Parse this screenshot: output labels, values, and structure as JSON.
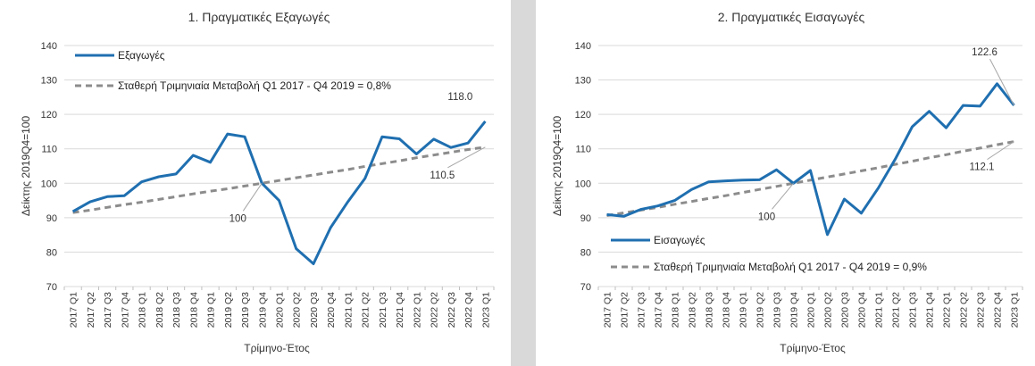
{
  "chart_data": [
    {
      "type": "line",
      "title": "1. Πραγματικές Εξαγωγές",
      "xlabel": "Τρίμηνο-Έτος",
      "ylabel": "Δείκτης 2019Q4=100",
      "ylim": [
        70,
        140
      ],
      "yticks": [
        70,
        80,
        90,
        100,
        110,
        120,
        130,
        140
      ],
      "grid": true,
      "legend_position": "top-left",
      "categories": [
        "2017 Q1",
        "2017 Q2",
        "2017 Q3",
        "2017 Q4",
        "2018 Q1",
        "2018 Q2",
        "2018 Q3",
        "2018 Q4",
        "2019 Q1",
        "2019 Q2",
        "2019 Q3",
        "2019 Q4",
        "2020 Q1",
        "2020 Q2",
        "2020 Q3",
        "2020 Q4",
        "2021 Q1",
        "2021 Q2",
        "2021 Q3",
        "2021 Q4",
        "2022 Q1",
        "2022 Q2",
        "2022 Q3",
        "2022 Q4",
        "2023 Q1"
      ],
      "series": [
        {
          "name": "Εξαγωγές",
          "color": "#1f6fb0",
          "style": "solid",
          "values": [
            91.8,
            94.6,
            96.1,
            96.4,
            100.4,
            101.9,
            102.7,
            108.1,
            106.1,
            114.3,
            113.5,
            100.0,
            95.0,
            81.0,
            76.6,
            87.1,
            94.6,
            101.4,
            113.5,
            112.9,
            108.5,
            112.8,
            110.4,
            111.7,
            118.0
          ]
        },
        {
          "name": "Σταθερή Τριμηνιαία Μεταβολή Q1 2017 - Q4 2019 = 0,8%",
          "color": "#8c8c8c",
          "style": "dashed",
          "values": [
            91.5,
            92.2,
            93.0,
            93.8,
            94.5,
            95.3,
            96.1,
            96.9,
            97.7,
            98.4,
            99.2,
            100.0,
            100.8,
            101.6,
            102.4,
            103.2,
            104.0,
            104.9,
            105.7,
            106.5,
            107.4,
            108.2,
            109.0,
            109.8,
            110.5
          ]
        }
      ],
      "annotations": [
        {
          "text": "118.0",
          "category": "2023 Q1",
          "value": 118.0
        },
        {
          "text": "110.5",
          "category": "2023 Q1",
          "value": 110.5
        },
        {
          "text": "100",
          "category": "2019 Q4",
          "value": 100.0
        }
      ]
    },
    {
      "type": "line",
      "title": "2. Πραγματικές Εισαγωγές",
      "xlabel": "Τρίμηνο-Έτος",
      "ylabel": "Δείκτης 2019Q4=100",
      "ylim": [
        70,
        140
      ],
      "yticks": [
        70,
        80,
        90,
        100,
        110,
        120,
        130,
        140
      ],
      "grid": true,
      "legend_position": "bottom-left",
      "categories": [
        "2017 Q1",
        "2017 Q2",
        "2017 Q3",
        "2017 Q4",
        "2018 Q1",
        "2018 Q2",
        "2018 Q3",
        "2018 Q4",
        "2019 Q1",
        "2019 Q2",
        "2019 Q3",
        "2019 Q4",
        "2020 Q1",
        "2020 Q2",
        "2020 Q3",
        "2020 Q4",
        "2021 Q1",
        "2021 Q2",
        "2021 Q3",
        "2021 Q4",
        "2022 Q1",
        "2022 Q2",
        "2022 Q3",
        "2022 Q4",
        "2023 Q1"
      ],
      "series": [
        {
          "name": "Εισαγωγές",
          "color": "#1f6fb0",
          "style": "solid",
          "values": [
            90.9,
            90.4,
            92.4,
            93.4,
            95.0,
            98.2,
            100.4,
            100.7,
            100.9,
            101.0,
            103.9,
            100.0,
            103.7,
            85.1,
            95.4,
            91.3,
            98.6,
            107.0,
            116.4,
            120.9,
            116.1,
            122.6,
            122.4,
            128.9,
            122.6
          ]
        },
        {
          "name": "Σταθερή Τριμηνιαία Μεταβολή Q1 2017 - Q4 2019 = 0,9%",
          "color": "#8c8c8c",
          "style": "dashed",
          "values": [
            90.6,
            91.4,
            92.2,
            93.0,
            93.9,
            94.7,
            95.6,
            96.4,
            97.3,
            98.2,
            99.1,
            100.0,
            100.9,
            101.8,
            102.7,
            103.6,
            104.5,
            105.5,
            106.4,
            107.4,
            108.3,
            109.3,
            110.2,
            111.2,
            112.1
          ]
        }
      ],
      "annotations": [
        {
          "text": "122.6",
          "category": "2023 Q1",
          "value": 122.6
        },
        {
          "text": "112.1",
          "category": "2023 Q1",
          "value": 112.1
        },
        {
          "text": "100",
          "category": "2019 Q4",
          "value": 100.0
        }
      ]
    }
  ]
}
